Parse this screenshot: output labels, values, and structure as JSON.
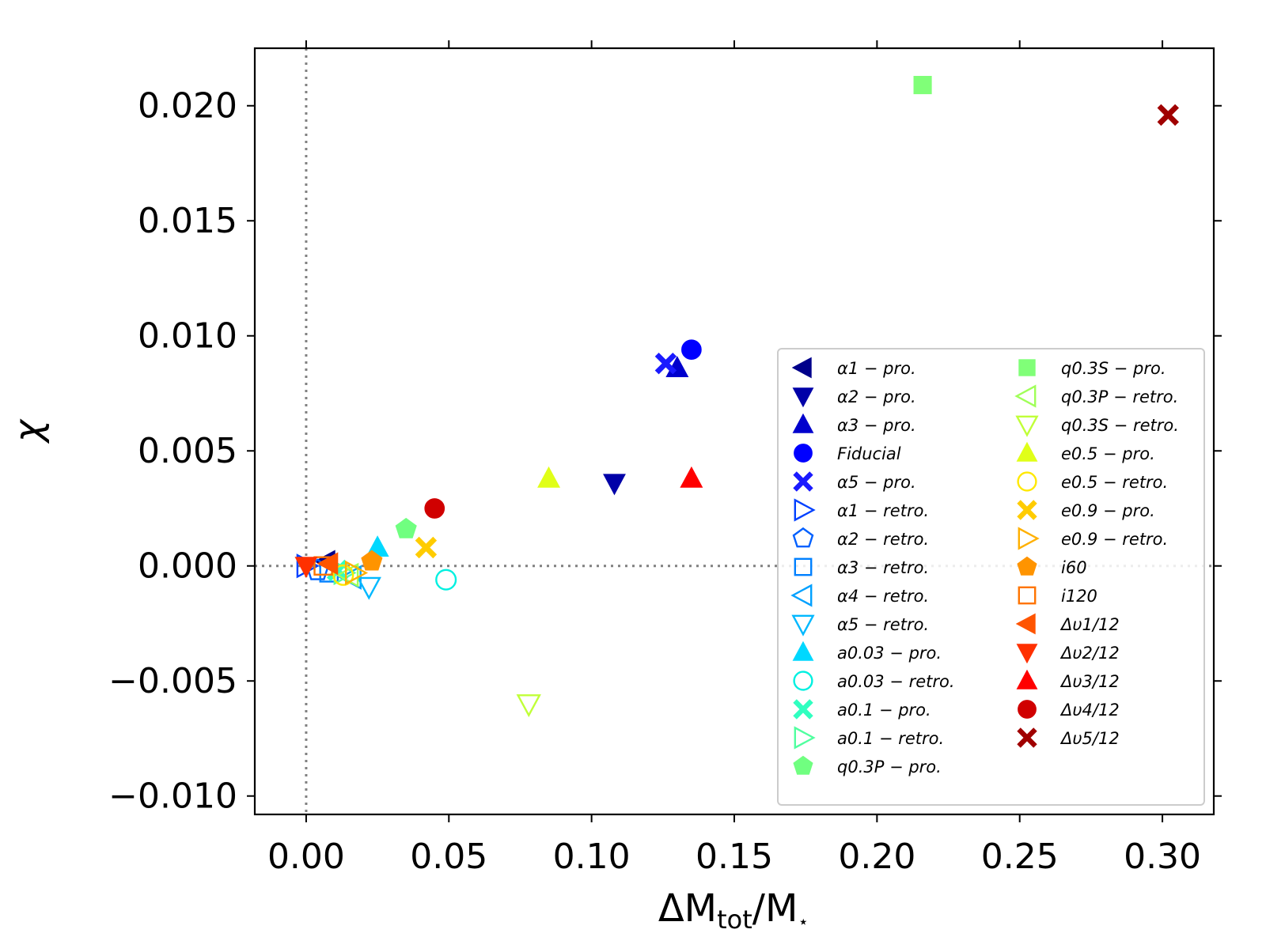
{
  "chart_data": {
    "type": "scatter",
    "title": "",
    "xlabel": "ΔM_tot/M_⋆",
    "xlabel_parts": {
      "delta": "ΔM",
      "sub": "tot",
      "slash": "/M",
      "star": "⋆"
    },
    "ylabel": "χ",
    "xlim": [
      -0.018,
      0.318
    ],
    "ylim": [
      -0.0108,
      0.0225
    ],
    "x_ticks": [
      0.0,
      0.05,
      0.1,
      0.15,
      0.2,
      0.25,
      0.3
    ],
    "x_tick_labels": [
      "0.00",
      "0.05",
      "0.10",
      "0.15",
      "0.20",
      "0.25",
      "0.30"
    ],
    "y_ticks": [
      0.02,
      0.015,
      0.01,
      0.005,
      0.0,
      -0.005,
      -0.01
    ],
    "y_tick_labels": [
      "0.020",
      "0.015",
      "0.010",
      "0.005",
      "0.000",
      "−0.005",
      "−0.010"
    ],
    "reference_lines": {
      "x": 0,
      "y": 0,
      "style": "dotted",
      "color": "#808080"
    },
    "legend_position": "lower-right",
    "series": [
      {
        "name": "α1 − pro.",
        "marker": "triangle-left",
        "filled": true,
        "color": "#00008b",
        "x": 0.007,
        "y": 0.0002
      },
      {
        "name": "α2 − pro.",
        "marker": "triangle-down",
        "filled": true,
        "color": "#0000a8",
        "x": 0.108,
        "y": 0.0036
      },
      {
        "name": "α3 − pro.",
        "marker": "triangle-up",
        "filled": true,
        "color": "#0000cd",
        "x": 0.13,
        "y": 0.0086
      },
      {
        "name": "Fiducial",
        "marker": "circle",
        "filled": true,
        "color": "#0000ff",
        "x": 0.135,
        "y": 0.0094
      },
      {
        "name": "α5 − pro.",
        "marker": "x-filled",
        "filled": true,
        "color": "#1a1aff",
        "x": 0.126,
        "y": 0.0088
      },
      {
        "name": "α1 − retro.",
        "marker": "triangle-right",
        "filled": false,
        "color": "#0040ff",
        "x": 0.0,
        "y": 0.0
      },
      {
        "name": "α2 − retro.",
        "marker": "pentagon",
        "filled": false,
        "color": "#0060ff",
        "x": 0.004,
        "y": -0.0002
      },
      {
        "name": "α3 − retro.",
        "marker": "square",
        "filled": false,
        "color": "#0080ff",
        "x": 0.008,
        "y": -0.0003
      },
      {
        "name": "α4 − retro.",
        "marker": "triangle-left",
        "filled": false,
        "color": "#00a0ff",
        "x": 0.016,
        "y": -0.0005
      },
      {
        "name": "α5 − retro.",
        "marker": "triangle-down",
        "filled": false,
        "color": "#00b8ff",
        "x": 0.022,
        "y": -0.0009
      },
      {
        "name": "a0.03 − pro.",
        "marker": "triangle-up",
        "filled": true,
        "color": "#00d8ff",
        "x": 0.025,
        "y": 0.0008
      },
      {
        "name": "a0.03 − retro.",
        "marker": "circle",
        "filled": false,
        "color": "#00f0e0",
        "x": 0.049,
        "y": -0.0006
      },
      {
        "name": "a0.1 − pro.",
        "marker": "x-filled",
        "filled": true,
        "color": "#30ffc0",
        "x": 0.011,
        "y": -0.0002
      },
      {
        "name": "a0.1 − retro.",
        "marker": "triangle-right",
        "filled": false,
        "color": "#50ff9f",
        "x": 0.013,
        "y": -0.0003
      },
      {
        "name": "q0.3P − pro.",
        "marker": "pentagon",
        "filled": true,
        "color": "#70ff80",
        "x": 0.035,
        "y": 0.0016
      },
      {
        "name": "q0.3S − pro.",
        "marker": "square",
        "filled": true,
        "color": "#80ff78",
        "x": 0.216,
        "y": 0.0209
      },
      {
        "name": "q0.3P − retro.",
        "marker": "triangle-left",
        "filled": false,
        "color": "#a0ff58",
        "x": 0.015,
        "y": -0.0004
      },
      {
        "name": "q0.3S − retro.",
        "marker": "triangle-down",
        "filled": false,
        "color": "#c0ff38",
        "x": 0.078,
        "y": -0.006
      },
      {
        "name": "e0.5 − pro.",
        "marker": "triangle-up",
        "filled": true,
        "color": "#e0ff18",
        "x": 0.085,
        "y": 0.0038
      },
      {
        "name": "e0.5 − retro.",
        "marker": "circle",
        "filled": false,
        "color": "#ffe800",
        "x": 0.013,
        "y": -0.0004
      },
      {
        "name": "e0.9 − pro.",
        "marker": "x-filled",
        "filled": true,
        "color": "#ffcc00",
        "x": 0.042,
        "y": 0.0008
      },
      {
        "name": "e0.9 − retro.",
        "marker": "triangle-right",
        "filled": false,
        "color": "#ffb000",
        "x": 0.017,
        "y": -0.0003
      },
      {
        "name": "i60",
        "marker": "pentagon",
        "filled": true,
        "color": "#ff9400",
        "x": 0.023,
        "y": 0.0002
      },
      {
        "name": "i120",
        "marker": "square",
        "filled": false,
        "color": "#ff7400",
        "x": 0.006,
        "y": 0.0
      },
      {
        "name": "Δυ1/12",
        "marker": "triangle-left",
        "filled": true,
        "color": "#ff5400",
        "x": 0.008,
        "y": 0.0001
      },
      {
        "name": "Δυ2/12",
        "marker": "triangle-down",
        "filled": true,
        "color": "#ff3000",
        "x": 0.0,
        "y": 0.0
      },
      {
        "name": "Δυ3/12",
        "marker": "triangle-up",
        "filled": true,
        "color": "#ff0000",
        "x": 0.135,
        "y": 0.0038
      },
      {
        "name": "Δυ4/12",
        "marker": "circle",
        "filled": true,
        "color": "#d00000",
        "x": 0.045,
        "y": 0.0025
      },
      {
        "name": "Δυ5/12",
        "marker": "x-filled",
        "filled": true,
        "color": "#a00000",
        "x": 0.302,
        "y": 0.0196
      }
    ]
  }
}
